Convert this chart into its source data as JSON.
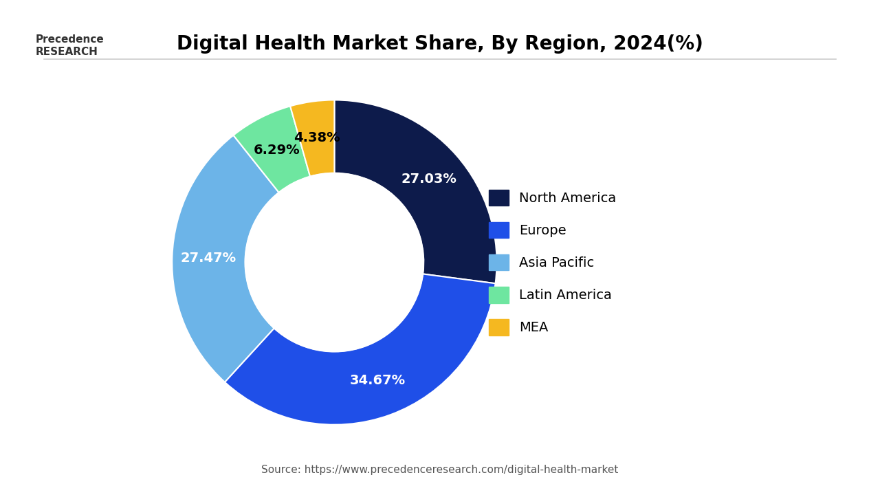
{
  "title": "Digital Health Market Share, By Region, 2024(%)",
  "labels": [
    "North America",
    "Europe",
    "Asia Pacific",
    "Latin America",
    "MEA"
  ],
  "values": [
    27.03,
    34.67,
    27.47,
    6.29,
    4.38
  ],
  "colors": [
    "#0d1b4b",
    "#1f4fe8",
    "#6cb4e8",
    "#6ee6a0",
    "#f5b820"
  ],
  "pct_labels": [
    "27.03%",
    "34.67%",
    "27.47%",
    "6.29%",
    "4.38%"
  ],
  "pct_colors": [
    "white",
    "white",
    "white",
    "black",
    "black"
  ],
  "source_text": "Source: https://www.precedenceresearch.com/digital-health-market",
  "background_color": "#ffffff",
  "wedge_edge_color": "white",
  "donut_ratio": 0.55,
  "startangle": 90,
  "legend_fontsize": 14,
  "title_fontsize": 20,
  "pct_fontsize": 14,
  "source_fontsize": 11
}
